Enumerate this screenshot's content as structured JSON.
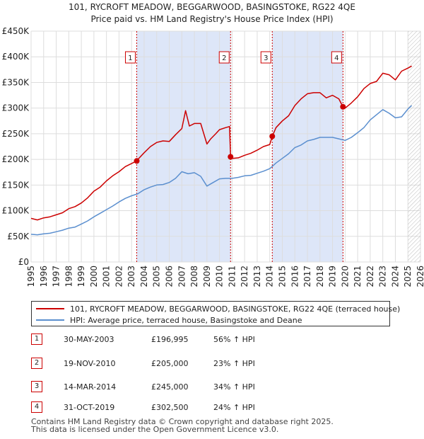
{
  "chart_data": {
    "type": "line",
    "title": "101, RYCROFT MEADOW, BEGGARWOOD, BASINGSTOKE, RG22 4QE",
    "subtitle": "Price paid vs. HM Land Registry's House Price Index (HPI)",
    "xlabel": "",
    "ylabel": "",
    "xlim": [
      1995,
      2026
    ],
    "ylim": [
      0,
      450000
    ],
    "x_ticks": [
      "1995",
      "1996",
      "1997",
      "1998",
      "1999",
      "2000",
      "2001",
      "2002",
      "2003",
      "2004",
      "2005",
      "2006",
      "2007",
      "2008",
      "2009",
      "2010",
      "2011",
      "2012",
      "2013",
      "2014",
      "2015",
      "2016",
      "2017",
      "2018",
      "2019",
      "2020",
      "2021",
      "2022",
      "2023",
      "2024",
      "2025",
      "2026"
    ],
    "y_ticks": [
      {
        "value": 0,
        "label": "£0"
      },
      {
        "value": 50000,
        "label": "£50K"
      },
      {
        "value": 100000,
        "label": "£100K"
      },
      {
        "value": 150000,
        "label": "£150K"
      },
      {
        "value": 200000,
        "label": "£200K"
      },
      {
        "value": 250000,
        "label": "£250K"
      },
      {
        "value": 300000,
        "label": "£300K"
      },
      {
        "value": 350000,
        "label": "£350K"
      },
      {
        "value": 400000,
        "label": "£400K"
      },
      {
        "value": 450000,
        "label": "£450K"
      }
    ],
    "grid": true,
    "series": [
      {
        "name": "101, RYCROFT MEADOW, BEGGARWOOD, BASINGSTOKE, RG22 4QE (terraced house)",
        "color": "#cc0000",
        "x": [
          1995.0,
          1995.5,
          1996.0,
          1996.5,
          1997.0,
          1997.5,
          1998.0,
          1998.5,
          1999.0,
          1999.5,
          2000.0,
          2000.5,
          2001.0,
          2001.5,
          2002.0,
          2002.5,
          2003.0,
          2003.41,
          2003.5,
          2004.0,
          2004.5,
          2005.0,
          2005.5,
          2006.0,
          2006.5,
          2007.0,
          2007.3,
          2007.6,
          2008.0,
          2008.5,
          2009.0,
          2009.3,
          2009.7,
          2010.0,
          2010.5,
          2010.8,
          2010.88,
          2011.0,
          2011.5,
          2012.0,
          2012.5,
          2013.0,
          2013.5,
          2014.0,
          2014.2,
          2014.5,
          2015.0,
          2015.5,
          2016.0,
          2016.5,
          2017.0,
          2017.5,
          2018.0,
          2018.5,
          2019.0,
          2019.5,
          2019.83,
          2020.0,
          2020.5,
          2021.0,
          2021.5,
          2022.0,
          2022.5,
          2023.0,
          2023.5,
          2024.0,
          2024.5,
          2025.0,
          2025.3
        ],
        "values": [
          85000,
          82000,
          86000,
          88000,
          92000,
          96000,
          104000,
          108000,
          115000,
          125000,
          138000,
          146000,
          158000,
          168000,
          176000,
          186000,
          192000,
          196995,
          200000,
          213000,
          225000,
          233000,
          236000,
          235000,
          248000,
          260000,
          295000,
          265000,
          270000,
          270000,
          230000,
          240000,
          250000,
          258000,
          262000,
          264000,
          205000,
          202000,
          203000,
          208000,
          212000,
          218000,
          225000,
          229000,
          245000,
          262000,
          275000,
          285000,
          305000,
          318000,
          328000,
          330000,
          330000,
          320000,
          325000,
          318000,
          302500,
          300000,
          310000,
          322000,
          338000,
          348000,
          352000,
          368000,
          365000,
          355000,
          372000,
          378000,
          382000
        ]
      },
      {
        "name": "HPI: Average price, terraced house, Basingstoke and Deane",
        "color": "#5b8fcf",
        "x": [
          1995.0,
          1995.5,
          1996.0,
          1996.5,
          1997.0,
          1997.5,
          1998.0,
          1998.5,
          1999.0,
          1999.5,
          2000.0,
          2000.5,
          2001.0,
          2001.5,
          2002.0,
          2002.5,
          2003.0,
          2003.5,
          2004.0,
          2004.5,
          2005.0,
          2005.5,
          2006.0,
          2006.5,
          2007.0,
          2007.5,
          2008.0,
          2008.5,
          2009.0,
          2009.5,
          2010.0,
          2010.5,
          2011.0,
          2011.5,
          2012.0,
          2012.5,
          2013.0,
          2013.5,
          2014.0,
          2014.5,
          2015.0,
          2015.5,
          2016.0,
          2016.5,
          2017.0,
          2017.5,
          2018.0,
          2018.5,
          2019.0,
          2019.5,
          2020.0,
          2020.5,
          2021.0,
          2021.5,
          2022.0,
          2022.5,
          2023.0,
          2023.5,
          2024.0,
          2024.5,
          2025.0,
          2025.3
        ],
        "values": [
          54000,
          53000,
          55000,
          56000,
          59000,
          62000,
          66000,
          68000,
          74000,
          80000,
          88000,
          95000,
          102000,
          109000,
          117000,
          124000,
          129000,
          133000,
          141000,
          146000,
          150000,
          151000,
          155000,
          163000,
          176000,
          172000,
          174000,
          167000,
          148000,
          155000,
          162000,
          163000,
          163000,
          165000,
          168000,
          169000,
          173000,
          177000,
          182000,
          193000,
          202000,
          211000,
          223000,
          228000,
          236000,
          239000,
          243000,
          243000,
          243000,
          240000,
          237000,
          243000,
          252000,
          262000,
          277000,
          287000,
          297000,
          290000,
          281000,
          283000,
          298000,
          305000
        ]
      }
    ],
    "markers": [
      {
        "label": "1",
        "x": 2003.41,
        "y": 196995
      },
      {
        "label": "2",
        "x": 2010.88,
        "y": 205000
      },
      {
        "label": "3",
        "x": 2014.2,
        "y": 245000
      },
      {
        "label": "4",
        "x": 2019.83,
        "y": 302500
      }
    ],
    "shaded_periods": [
      {
        "from": 2003.41,
        "to": 2010.88
      },
      {
        "from": 2014.2,
        "to": 2019.83
      }
    ],
    "hatch_from": 2025.0
  },
  "legend": {
    "property_label": "101, RYCROFT MEADOW, BEGGARWOOD, BASINGSTOKE, RG22 4QE (terraced house)",
    "hpi_label": "HPI: Average price, terraced house, Basingstoke and Deane"
  },
  "sales": [
    {
      "num": "1",
      "date": "30-MAY-2003",
      "price": "£196,995",
      "hpi": "56% ↑ HPI"
    },
    {
      "num": "2",
      "date": "19-NOV-2010",
      "price": "£205,000",
      "hpi": "23% ↑ HPI"
    },
    {
      "num": "3",
      "date": "14-MAR-2014",
      "price": "£245,000",
      "hpi": "34% ↑ HPI"
    },
    {
      "num": "4",
      "date": "31-OCT-2019",
      "price": "£302,500",
      "hpi": "24% ↑ HPI"
    }
  ],
  "footer": {
    "line1": "Contains HM Land Registry data © Crown copyright and database right 2025.",
    "line2": "This data is licensed under the Open Government Licence v3.0."
  },
  "colors": {
    "property": "#cc0000",
    "hpi": "#5b8fcf",
    "shade": "#dde6f8",
    "grid": "#dddddd",
    "vline": "#cc0000"
  }
}
